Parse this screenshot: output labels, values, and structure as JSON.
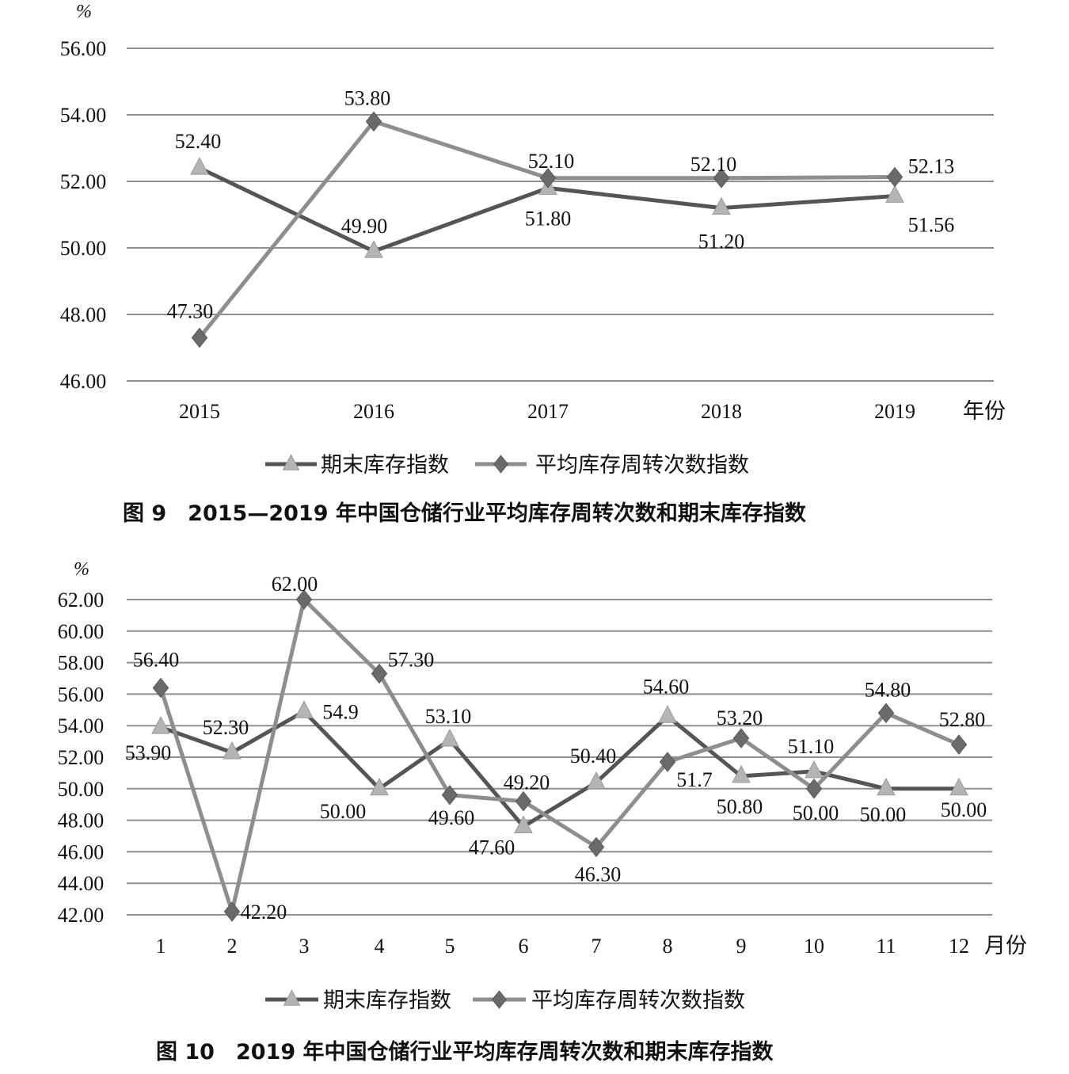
{
  "colors": {
    "background": "#ffffff",
    "grid": "#8f8f8f",
    "series_dark": "#555555",
    "series_light": "#8e8e8e",
    "triangle_marker": "#b4b4b4",
    "diamond_marker": "#6a6a6a"
  },
  "chart_data": [
    {
      "type": "line",
      "caption": "图 9　2015—2019 年中国仓储行业平均库存周转次数和期末库存指数",
      "ylabel": "%",
      "xlabel": "年份",
      "ylim": [
        46,
        56
      ],
      "yticks": [
        "56.00",
        "54.00",
        "52.00",
        "50.00",
        "48.00",
        "46.00"
      ],
      "categories": [
        "2015",
        "2016",
        "2017",
        "2018",
        "2019"
      ],
      "grid": true,
      "legend_position": "bottom",
      "series": [
        {
          "name": "期末库存指数",
          "marker": "triangle",
          "values": [
            52.4,
            49.9,
            51.8,
            51.2,
            51.56
          ],
          "labels": [
            "52.40",
            "49.90",
            "51.80",
            "51.20",
            "51.56"
          ]
        },
        {
          "name": "平均库存周转次数指数",
          "marker": "diamond",
          "values": [
            47.3,
            53.8,
            52.1,
            52.1,
            52.13
          ],
          "labels": [
            "47.30",
            "53.80",
            "52.10",
            "52.10",
            "52.13"
          ]
        }
      ]
    },
    {
      "type": "line",
      "caption": "图 10　2019 年中国仓储行业平均库存周转次数和期末库存指数",
      "ylabel": "%",
      "xlabel": "月份",
      "ylim": [
        42,
        62
      ],
      "yticks": [
        "62.00",
        "60.00",
        "58.00",
        "56.00",
        "54.00",
        "52.00",
        "50.00",
        "48.00",
        "46.00",
        "44.00",
        "42.00"
      ],
      "categories": [
        "1",
        "2",
        "3",
        "4",
        "5",
        "6",
        "7",
        "8",
        "9",
        "10",
        "11",
        "12"
      ],
      "grid": true,
      "legend_position": "bottom",
      "series": [
        {
          "name": "期末库存指数",
          "marker": "triangle",
          "values": [
            53.9,
            52.3,
            54.9,
            50.0,
            53.1,
            47.6,
            50.4,
            54.6,
            50.8,
            51.1,
            50.0,
            50.0
          ],
          "labels": [
            "53.90",
            "52.30",
            "54.9",
            "50.00",
            "53.10",
            "47.60",
            "50.40",
            "54.60",
            "50.80",
            "51.10",
            "50.00",
            "50.00"
          ]
        },
        {
          "name": "平均库存周转次数指数",
          "marker": "diamond",
          "values": [
            56.4,
            42.2,
            62.0,
            57.3,
            49.6,
            49.2,
            46.3,
            51.7,
            53.2,
            50.0,
            54.8,
            52.8
          ],
          "labels": [
            "56.40",
            "42.20",
            "62.00",
            "57.30",
            "49.60",
            "49.20",
            "46.30",
            "51.7",
            "53.20",
            "50.00",
            "54.80",
            "52.80"
          ]
        }
      ]
    }
  ]
}
